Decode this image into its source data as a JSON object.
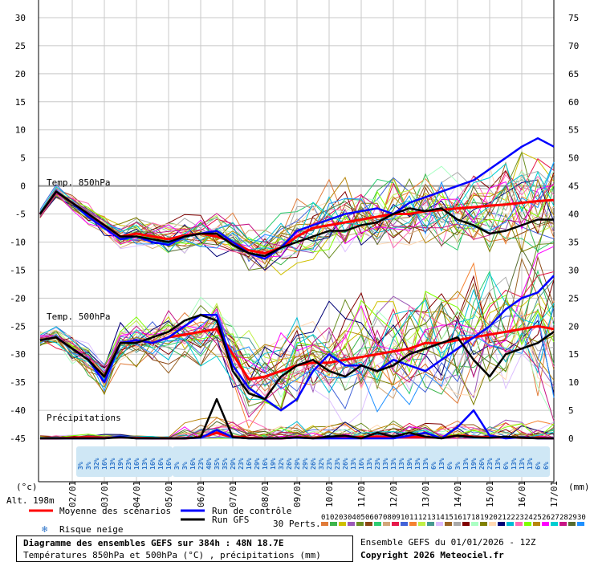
{
  "chart_data": {
    "type": "line",
    "title": "Diagramme des ensembles GEFS sur 384h : 48N 18.7E",
    "subtitle": "Températures 850hPa et 500hPa (°C) , précipitations (mm)",
    "run_info": "Ensemble GEFS du 01/01/2026 - 12Z",
    "copyright": "Copyright 2026 Meteociel.fr",
    "y_left_unit": "(°c)",
    "y_right_unit": "(mm)",
    "altitude": "Alt. 198m",
    "y_left_ticks": [
      30,
      25,
      20,
      15,
      10,
      5,
      0,
      -5,
      -10,
      -15,
      -20,
      -25,
      -30,
      -35,
      -40,
      -45
    ],
    "y_right_ticks": [
      75,
      70,
      65,
      60,
      55,
      50,
      45,
      40,
      35,
      30,
      25,
      20,
      15,
      10,
      5,
      0
    ],
    "ylim": [
      -45,
      30
    ],
    "x_ticks": [
      "02/01",
      "03/01",
      "04/01",
      "05/01",
      "06/01",
      "07/01",
      "08/01",
      "09/01",
      "10/01",
      "11/01",
      "12/01",
      "13/01",
      "14/01",
      "15/01",
      "16/01",
      "17/01"
    ],
    "section_labels": {
      "t850": "Temp. 850hPa",
      "t500": "Temp. 500hPa",
      "precip": "Précipitations"
    },
    "x_hours": [
      0,
      12,
      24,
      36,
      48,
      60,
      72,
      84,
      96,
      108,
      120,
      132,
      144,
      156,
      168,
      180,
      192,
      204,
      216,
      228,
      240,
      252,
      264,
      276,
      288,
      300,
      312,
      324,
      336,
      348,
      360,
      372,
      384
    ],
    "series": [
      {
        "name": "Moyenne des scénarios",
        "color": "#ff0000",
        "group": "t850",
        "values": [
          -5,
          -1,
          -3,
          -5,
          -7,
          -9,
          -8.5,
          -9,
          -9.5,
          -8.8,
          -8.5,
          -9,
          -10,
          -11.5,
          -12,
          -11,
          -9,
          -7.5,
          -7,
          -6.5,
          -6,
          -5.5,
          -5,
          -5,
          -4.5,
          -4.3,
          -4,
          -3.8,
          -3.5,
          -3.3,
          -3,
          -2.7,
          -2.5
        ]
      },
      {
        "name": "Run de contrôle",
        "color": "#0000ff",
        "group": "t850",
        "values": [
          -5,
          -1,
          -3,
          -5.5,
          -7.5,
          -9.5,
          -9,
          -10,
          -10.5,
          -9,
          -8.5,
          -8,
          -10,
          -12,
          -13,
          -11,
          -8,
          -7,
          -6,
          -5,
          -4.5,
          -4,
          -5,
          -3,
          -2,
          -1,
          0,
          1,
          3,
          5,
          7,
          8.5,
          7
        ]
      },
      {
        "name": "Run GFS",
        "color": "#000000",
        "group": "t850",
        "values": [
          -5,
          -1,
          -3,
          -5,
          -7,
          -9,
          -9,
          -9.5,
          -10,
          -9,
          -8.5,
          -8.5,
          -10.5,
          -12,
          -12.5,
          -11,
          -10,
          -9,
          -8,
          -8,
          -7,
          -6.5,
          -5,
          -4,
          -4.5,
          -4,
          -6,
          -7,
          -8.5,
          -8,
          -7,
          -6,
          -6
        ]
      },
      {
        "name": "Moyenne des scénarios",
        "color": "#ff0000",
        "group": "t500",
        "values": [
          -27.5,
          -27,
          -29,
          -31,
          -34,
          -28,
          -27.5,
          -28,
          -27,
          -26.5,
          -26,
          -25.5,
          -30,
          -34.5,
          -34,
          -33,
          -32,
          -31.5,
          -31.5,
          -31,
          -30.5,
          -30,
          -29.5,
          -29,
          -28,
          -28,
          -27.5,
          -27,
          -26.5,
          -26,
          -25.5,
          -25,
          -25.5
        ]
      },
      {
        "name": "Run de contrôle",
        "color": "#0000ff",
        "group": "t500",
        "values": [
          -27.5,
          -27,
          -29,
          -31,
          -35,
          -28,
          -27.5,
          -28,
          -27,
          -25,
          -23,
          -23,
          -32,
          -36,
          -38,
          -40,
          -38,
          -33,
          -30,
          -32,
          -32,
          -33,
          -31,
          -32,
          -33,
          -31,
          -29,
          -27,
          -25,
          -22,
          -20,
          -19,
          -16
        ]
      },
      {
        "name": "Run GFS",
        "color": "#000000",
        "group": "t500",
        "values": [
          -27.5,
          -27,
          -29,
          -31,
          -34,
          -28,
          -28,
          -27,
          -26,
          -24,
          -23,
          -24,
          -33,
          -37,
          -38,
          -34,
          -32,
          -31,
          -33,
          -34,
          -32,
          -33,
          -32,
          -30,
          -29,
          -28,
          -27,
          -31,
          -34,
          -30,
          -29,
          -28,
          -26
        ]
      },
      {
        "name": "Moyenne des scénarios",
        "color": "#ff0000",
        "group": "precip",
        "values": [
          0,
          0,
          0.1,
          0.2,
          0.1,
          0.2,
          0.1,
          0,
          0,
          0,
          0.2,
          1,
          0.3,
          0.1,
          0,
          0,
          0.2,
          0.1,
          0.2,
          0.3,
          0.2,
          0.3,
          0.2,
          0.3,
          0.2,
          0.1,
          0.5,
          0.3,
          0.2,
          0.2,
          0.1,
          0.1,
          0
        ]
      },
      {
        "name": "Run de contrôle",
        "color": "#0000ff",
        "group": "precip",
        "values": [
          0,
          0,
          0,
          0,
          0,
          0.3,
          0,
          0,
          0,
          0,
          0.1,
          1.5,
          0.2,
          0,
          0,
          0,
          0.1,
          0,
          0,
          0,
          0,
          0,
          0,
          0.5,
          1,
          0,
          2,
          5,
          0.5,
          0,
          0.2,
          0,
          0
        ]
      },
      {
        "name": "Run GFS",
        "color": "#000000",
        "group": "precip",
        "values": [
          0,
          0,
          0,
          0,
          0,
          0.2,
          0,
          0,
          0,
          0,
          0.2,
          7,
          0.2,
          0,
          0,
          0,
          0.2,
          0,
          0.3,
          0.5,
          0,
          1,
          0.3,
          1,
          0.3,
          0,
          0.5,
          0.2,
          0.1,
          0.3,
          0.1,
          0,
          0
        ]
      }
    ],
    "perturbations_label": "30 Perts.",
    "perturbation_ids": [
      "01",
      "02",
      "03",
      "04",
      "05",
      "06",
      "07",
      "08",
      "09",
      "10",
      "11",
      "12",
      "13",
      "14",
      "15",
      "16",
      "17",
      "18",
      "19",
      "20",
      "21",
      "22",
      "23",
      "24",
      "25",
      "26",
      "27",
      "28",
      "29",
      "30"
    ],
    "perturbation_colors": [
      "#e07b39",
      "#3cb44b",
      "#cfc000",
      "#9b59b6",
      "#6b8e23",
      "#8b4513",
      "#2ecc71",
      "#d2a679",
      "#e6194b",
      "#4363d8",
      "#f58231",
      "#bfef45",
      "#469990",
      "#dcbeff",
      "#9a6324",
      "#a9a9a9",
      "#800000",
      "#aaffc3",
      "#808000",
      "#ffd8b1",
      "#000075",
      "#00bcd4",
      "#ff69b4",
      "#7fff00",
      "#b8860b",
      "#ff00ff",
      "#00ced1",
      "#c71585",
      "#556b2f",
      "#1e90ff"
    ],
    "snow_risk_label": "Risque neige",
    "snow_risk": {
      "group1_x_hours": [
        30,
        36,
        42,
        48,
        54,
        60,
        66,
        72,
        78,
        84,
        90,
        96
      ],
      "group1_values": [
        "3%",
        "3%",
        "32%",
        "16%",
        "13%",
        "19%",
        "23%",
        "16%",
        "13%",
        "16%",
        "16%",
        "16%"
      ],
      "group2_x_hours": [
        102,
        108,
        114,
        120,
        126,
        132,
        138,
        144,
        150,
        156,
        162,
        168,
        174,
        180,
        186,
        192,
        198,
        204,
        210,
        216,
        222,
        228,
        234,
        240,
        246,
        252,
        258,
        264,
        270,
        276,
        282,
        288,
        294,
        300,
        306,
        312,
        318,
        324,
        330,
        336,
        342,
        348,
        354,
        360,
        366,
        372,
        378
      ],
      "group2_values": [
        "3%",
        "3%",
        "16%",
        "23%",
        "48%",
        "35%",
        "35%",
        "29%",
        "23%",
        "16%",
        "29%",
        "16%",
        "19%",
        "32%",
        "26%",
        "29%",
        "29%",
        "26%",
        "32%",
        "23%",
        "23%",
        "26%",
        "13%",
        "16%",
        "13%",
        "23%",
        "13%",
        "13%",
        "13%",
        "19%",
        "13%",
        "13%",
        "6%",
        "13%",
        "6%",
        "3%",
        "13%",
        "19%",
        "26%",
        "23%",
        "13%",
        "6%",
        "13%",
        "13%",
        "13%",
        "6%",
        "6%"
      ]
    },
    "legend": {
      "mean": "Moyenne des scénarios",
      "control": "Run de contrôle",
      "gfs": "Run GFS"
    }
  }
}
